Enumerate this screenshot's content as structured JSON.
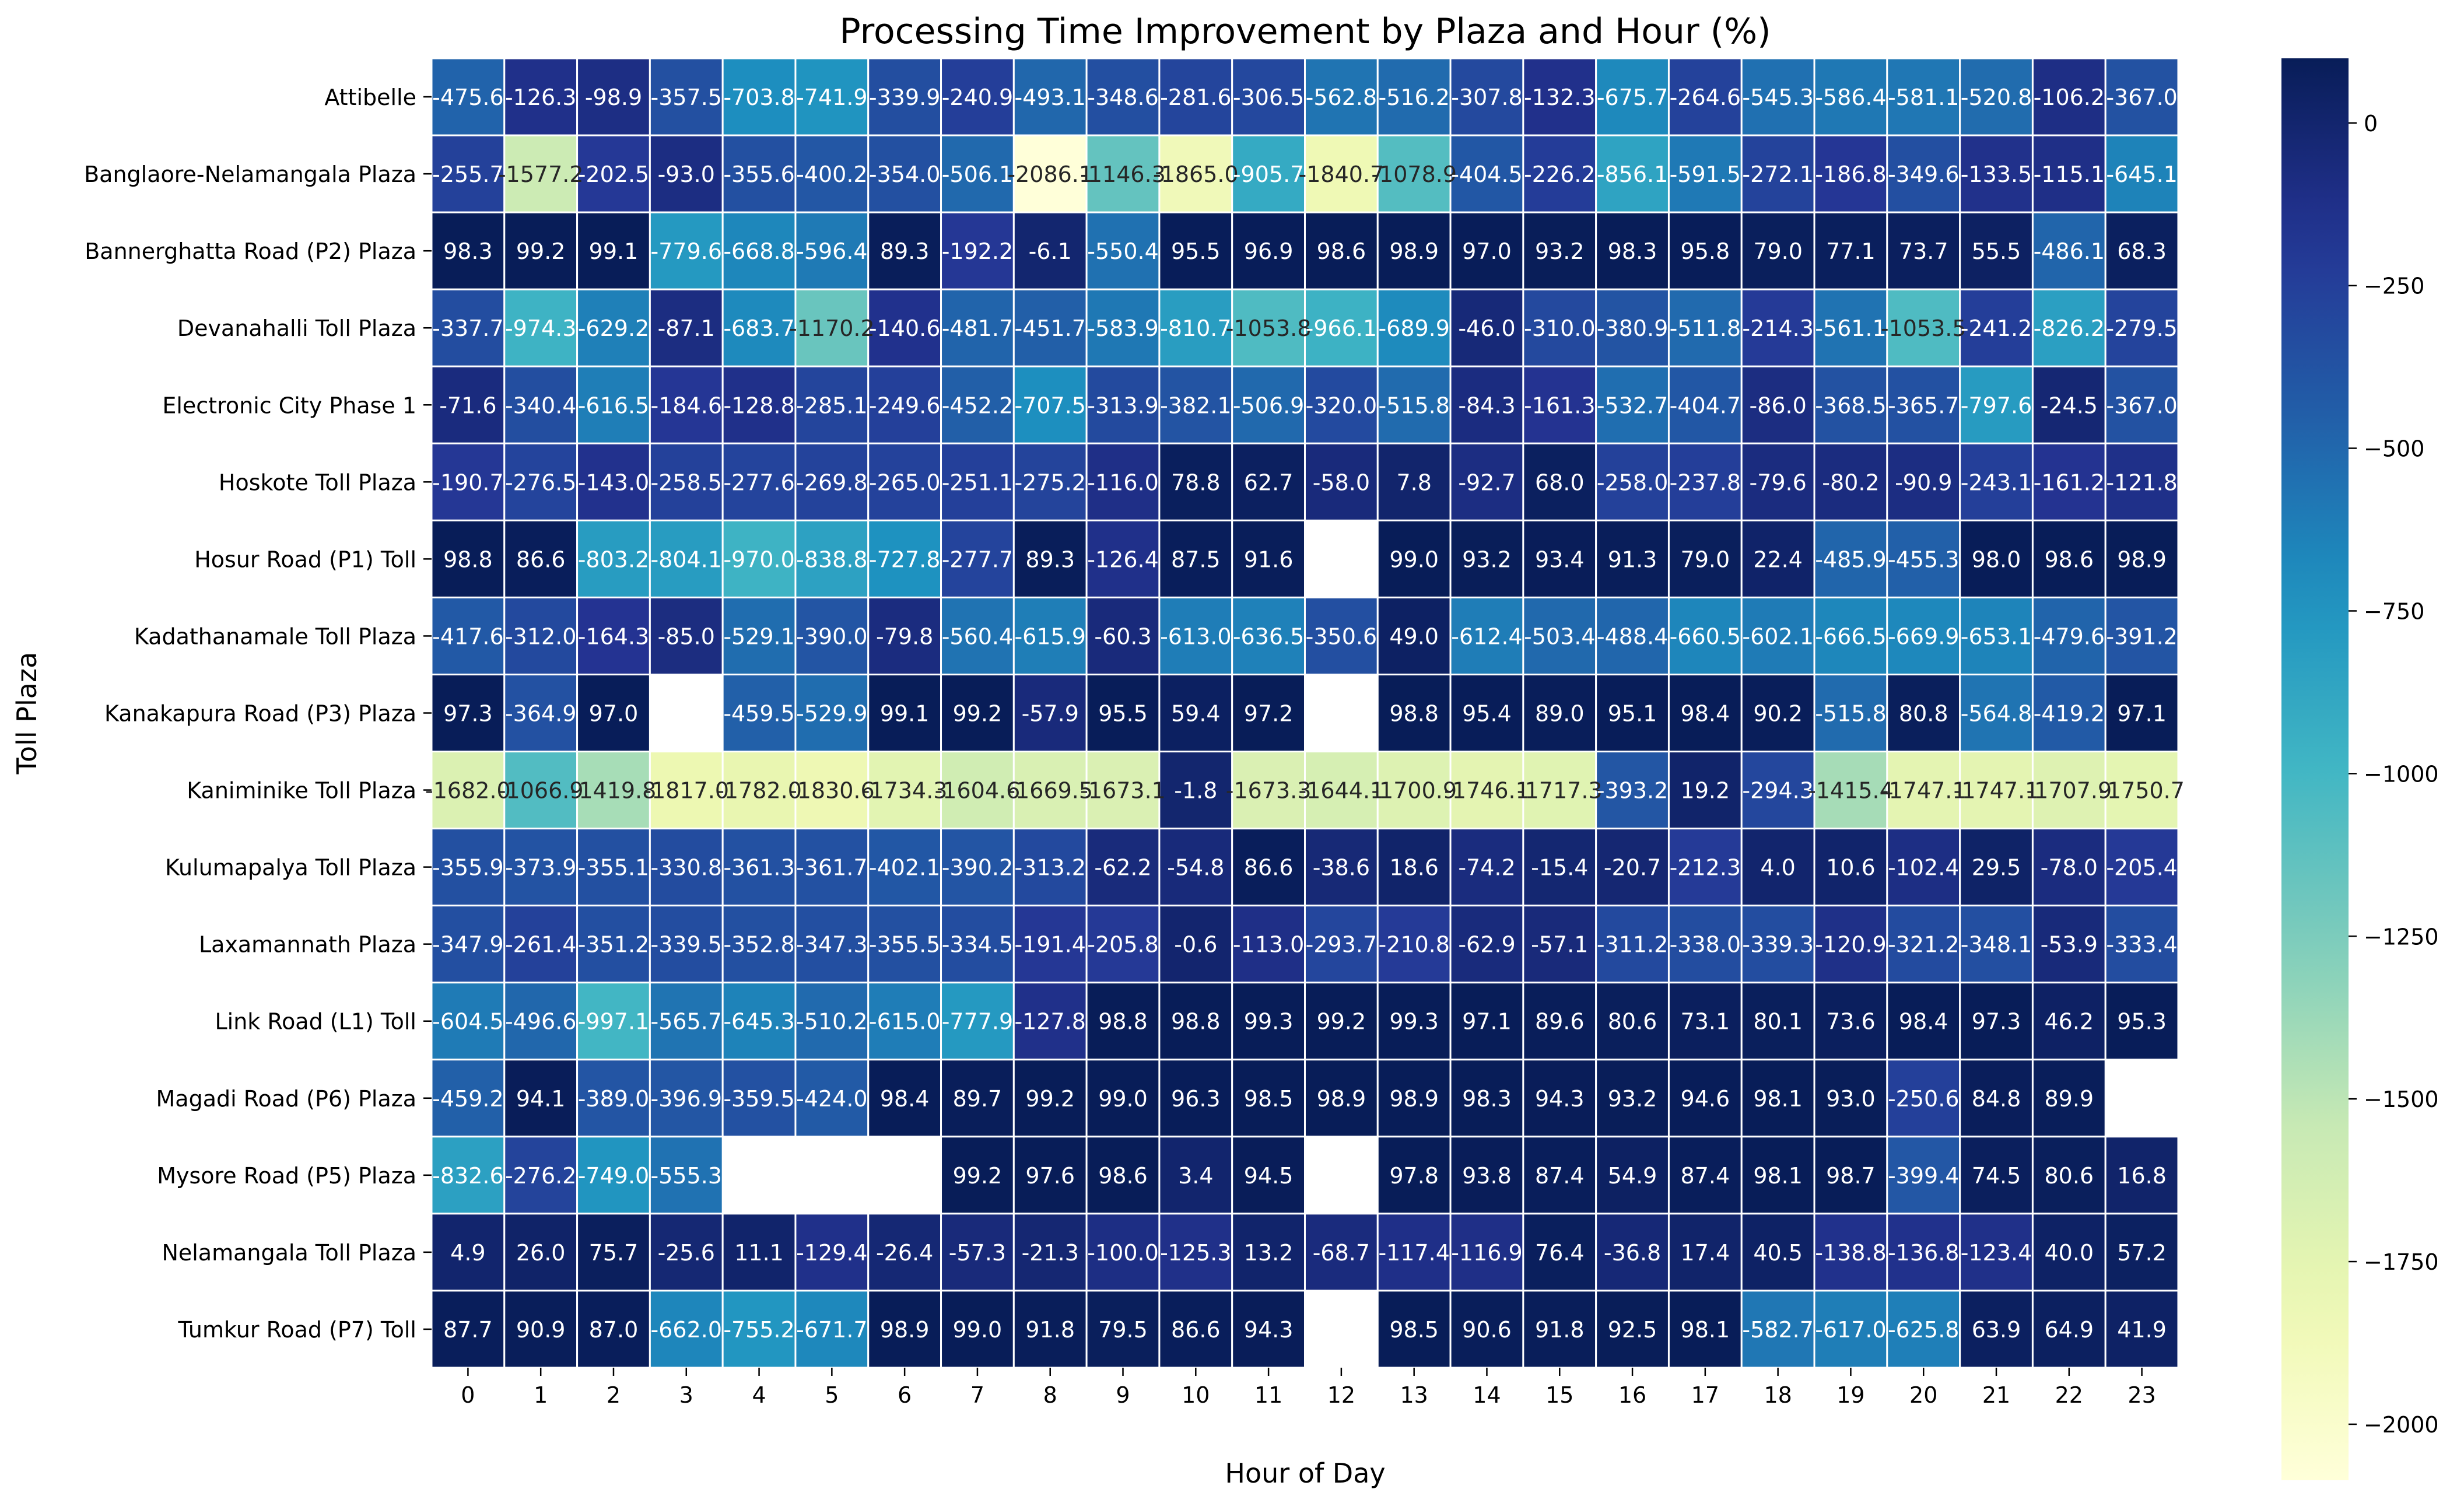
{
  "chart_data": {
    "type": "heatmap",
    "title": "Processing Time Improvement by Plaza and Hour (%)",
    "xlabel": "Hour of Day",
    "ylabel": "Toll Plaza",
    "colormap": "YlGnBu_r",
    "colorbar": {
      "min": -2086.1,
      "max": 99.3,
      "ticks": [
        0,
        -250,
        -500,
        -750,
        -1000,
        -1250,
        -1500,
        -1750,
        -2000
      ]
    },
    "x": [
      "0",
      "1",
      "2",
      "3",
      "4",
      "5",
      "6",
      "7",
      "8",
      "9",
      "10",
      "11",
      "12",
      "13",
      "14",
      "15",
      "16",
      "17",
      "18",
      "19",
      "20",
      "21",
      "22",
      "23"
    ],
    "y": [
      "Attibelle ",
      "Banglaore-Nelamangala Plaza",
      "Bannerghatta Road (P2) Plaza",
      "Devanahalli Toll Plaza",
      "Electronic  City Phase 1",
      "Hoskote Toll Plaza",
      "Hosur Road (P1) Toll",
      "Kadathanamale Toll Plaza",
      "Kanakapura Road (P3) Plaza",
      "Kaniminike Toll Plaza",
      "Kulumapalya Toll Plaza",
      "Laxamannath Plaza",
      "Link Road (L1) Toll",
      "Magadi Road (P6) Plaza",
      "Mysore Road (P5) Plaza",
      "Nelamangala Toll Plaza",
      "Tumkur Road (P7) Toll"
    ],
    "values": [
      [
        -475.6,
        -126.3,
        -98.9,
        -357.5,
        -703.8,
        -741.9,
        -339.9,
        -240.9,
        -493.1,
        -348.6,
        -281.6,
        -306.5,
        -562.8,
        -516.2,
        -307.8,
        -132.3,
        -675.7,
        -264.6,
        -545.3,
        -586.4,
        -581.1,
        -520.8,
        -106.2,
        -367.0
      ],
      [
        -255.7,
        -1577.2,
        -202.5,
        -93.0,
        -355.6,
        -400.2,
        -354.0,
        -506.1,
        -2086.1,
        -1146.3,
        -1865.0,
        -905.7,
        -1840.7,
        -1078.9,
        -404.5,
        -226.2,
        -856.1,
        -591.5,
        -272.1,
        -186.8,
        -349.6,
        -133.5,
        -115.1,
        -645.1
      ],
      [
        98.3,
        99.2,
        99.1,
        -779.6,
        -668.8,
        -596.4,
        89.3,
        -192.2,
        -6.1,
        -550.4,
        95.5,
        96.9,
        98.6,
        98.9,
        97.0,
        93.2,
        98.3,
        95.8,
        79.0,
        77.1,
        73.7,
        55.5,
        -486.1,
        68.3
      ],
      [
        -337.7,
        -974.3,
        -629.2,
        -87.1,
        -683.7,
        -1170.2,
        -140.6,
        -481.7,
        -451.7,
        -583.9,
        -810.7,
        -1053.8,
        -966.1,
        -689.9,
        -46.0,
        -310.0,
        -380.9,
        -511.8,
        -214.3,
        -561.1,
        -1053.5,
        -241.2,
        -826.2,
        -279.5
      ],
      [
        -71.6,
        -340.4,
        -616.5,
        -184.6,
        -128.8,
        -285.1,
        -249.6,
        -452.2,
        -707.5,
        -313.9,
        -382.1,
        -506.9,
        -320.0,
        -515.8,
        -84.3,
        -161.3,
        -532.7,
        -404.7,
        -86.0,
        -368.5,
        -365.7,
        -797.6,
        -24.5,
        -367.0
      ],
      [
        -190.7,
        -276.5,
        -143.0,
        -258.5,
        -277.6,
        -269.8,
        -265.0,
        -251.1,
        -275.2,
        -116.0,
        78.8,
        62.7,
        -58.0,
        7.8,
        -92.7,
        68.0,
        -258.0,
        -237.8,
        -79.6,
        -80.2,
        -90.9,
        -243.1,
        -161.2,
        -121.8
      ],
      [
        98.8,
        86.6,
        -803.2,
        -804.1,
        -970.0,
        -838.8,
        -727.8,
        -277.7,
        89.3,
        -126.4,
        87.5,
        91.6,
        null,
        99.0,
        93.2,
        93.4,
        91.3,
        79.0,
        22.4,
        -485.9,
        -455.3,
        98.0,
        98.6,
        98.9
      ],
      [
        -417.6,
        -312.0,
        -164.3,
        -85.0,
        -529.1,
        -390.0,
        -79.8,
        -560.4,
        -615.9,
        -60.3,
        -613.0,
        -636.5,
        -350.6,
        49.0,
        -612.4,
        -503.4,
        -488.4,
        -660.5,
        -602.1,
        -666.5,
        -669.9,
        -653.1,
        -479.6,
        -391.2
      ],
      [
        97.3,
        -364.9,
        97.0,
        null,
        -459.5,
        -529.9,
        99.1,
        99.2,
        -57.9,
        95.5,
        59.4,
        97.2,
        null,
        98.8,
        95.4,
        89.0,
        95.1,
        98.4,
        90.2,
        -515.8,
        80.8,
        -564.8,
        -419.2,
        97.1
      ],
      [
        -1682.0,
        -1066.9,
        -1419.8,
        -1817.0,
        -1782.0,
        -1830.6,
        -1734.3,
        -1604.6,
        -1669.5,
        -1673.1,
        -1.8,
        -1673.3,
        -1644.1,
        -1700.9,
        -1746.1,
        -1717.3,
        -393.2,
        19.2,
        -294.3,
        -1415.4,
        -1747.1,
        -1747.1,
        -1707.9,
        -1750.7
      ],
      [
        -355.9,
        -373.9,
        -355.1,
        -330.8,
        -361.3,
        -361.7,
        -402.1,
        -390.2,
        -313.2,
        -62.2,
        -54.8,
        86.6,
        -38.6,
        18.6,
        -74.2,
        -15.4,
        -20.7,
        -212.3,
        4.0,
        10.6,
        -102.4,
        29.5,
        -78.0,
        -205.4
      ],
      [
        -347.9,
        -261.4,
        -351.2,
        -339.5,
        -352.8,
        -347.3,
        -355.5,
        -334.5,
        -191.4,
        -205.8,
        -0.6,
        -113.0,
        -293.7,
        -210.8,
        -62.9,
        -57.1,
        -311.2,
        -338.0,
        -339.3,
        -120.9,
        -321.2,
        -348.1,
        -53.9,
        -333.4
      ],
      [
        -604.5,
        -496.6,
        -997.1,
        -565.7,
        -645.3,
        -510.2,
        -615.0,
        -777.9,
        -127.8,
        98.8,
        98.8,
        99.3,
        99.2,
        99.3,
        97.1,
        89.6,
        80.6,
        73.1,
        80.1,
        73.6,
        98.4,
        97.3,
        46.2,
        95.3
      ],
      [
        -459.2,
        94.1,
        -389.0,
        -396.9,
        -359.5,
        -424.0,
        98.4,
        89.7,
        99.2,
        99.0,
        96.3,
        98.5,
        98.9,
        98.9,
        98.3,
        94.3,
        93.2,
        94.6,
        98.1,
        93.0,
        -250.6,
        84.8,
        89.9,
        null
      ],
      [
        -832.6,
        -276.2,
        -749.0,
        -555.3,
        null,
        null,
        null,
        99.2,
        97.6,
        98.6,
        3.4,
        94.5,
        null,
        97.8,
        93.8,
        87.4,
        54.9,
        87.4,
        98.1,
        98.7,
        -399.4,
        74.5,
        80.6,
        16.8
      ],
      [
        4.9,
        26.0,
        75.7,
        -25.6,
        11.1,
        -129.4,
        -26.4,
        -57.3,
        -21.3,
        -100.0,
        -125.3,
        13.2,
        -68.7,
        -117.4,
        -116.9,
        76.4,
        -36.8,
        17.4,
        40.5,
        -138.8,
        -136.8,
        -123.4,
        40.0,
        57.2
      ],
      [
        87.7,
        90.9,
        87.0,
        -662.0,
        -755.2,
        -671.7,
        98.9,
        99.0,
        91.8,
        79.5,
        86.6,
        94.3,
        null,
        98.5,
        90.6,
        91.8,
        92.5,
        98.1,
        -582.7,
        -617.0,
        -625.8,
        63.9,
        64.9,
        41.9
      ]
    ]
  }
}
